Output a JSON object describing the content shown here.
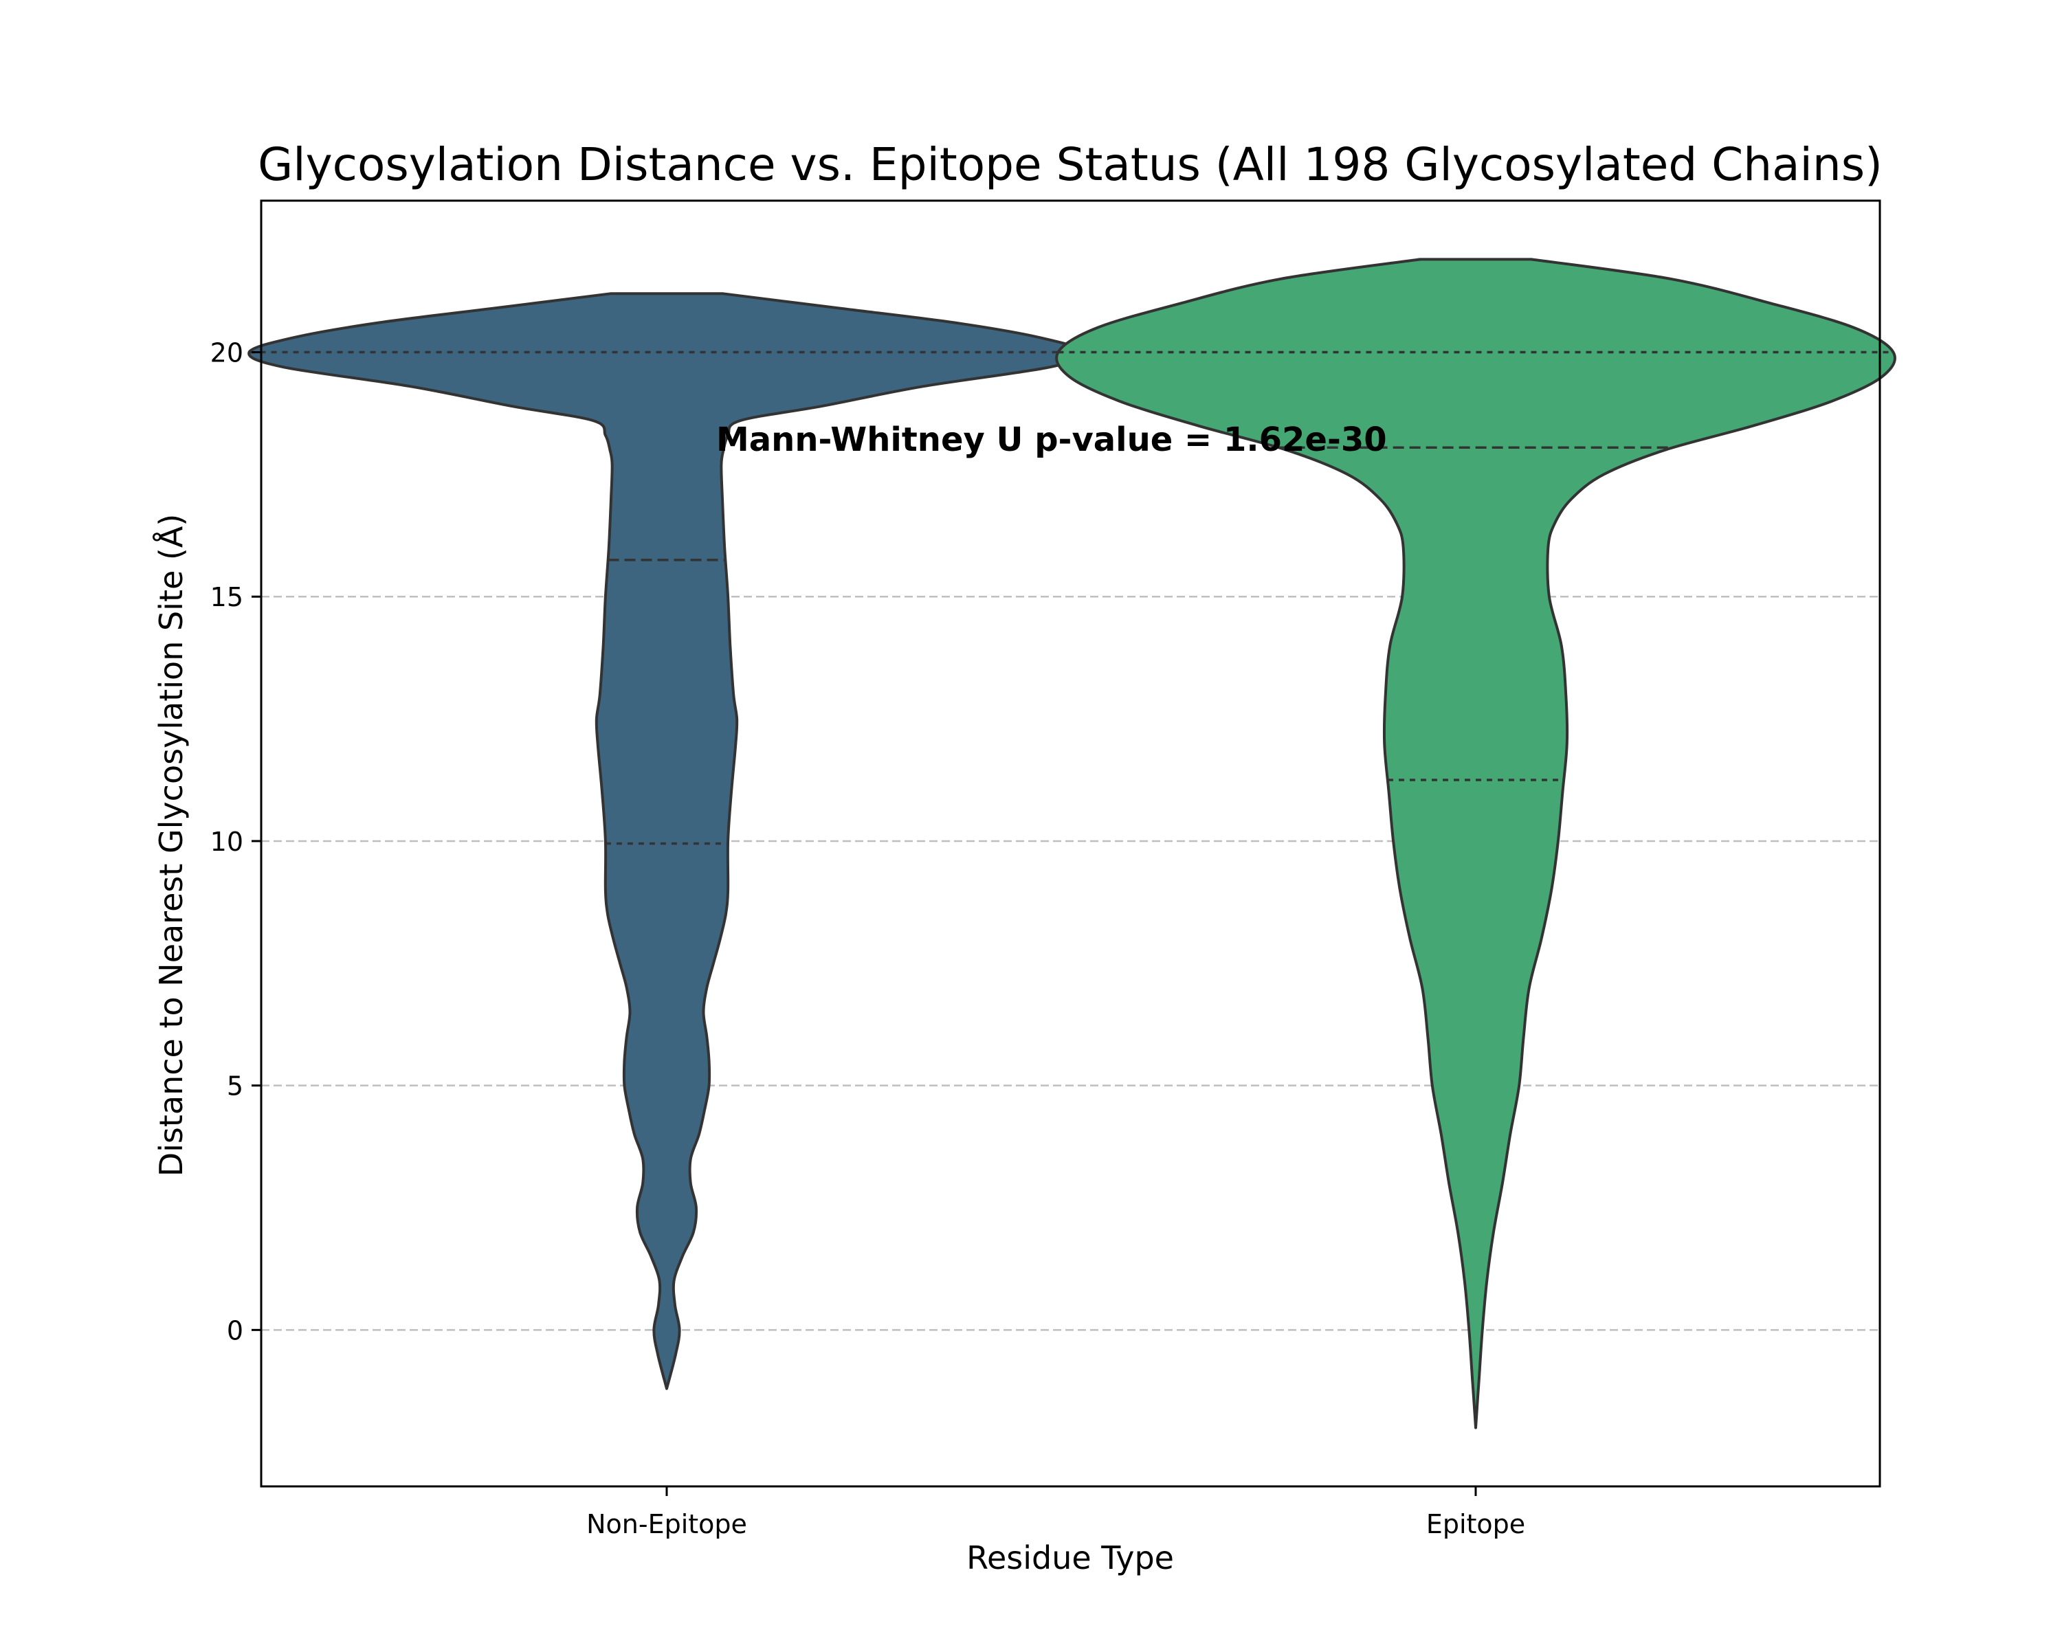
{
  "chart_data": {
    "type": "violin",
    "title": "Glycosylation Distance vs. Epitope Status (All 198 Glycosylated Chains)",
    "xlabel": "Residue Type",
    "ylabel": "Distance to Nearest Glycosylation Site (Å)",
    "categories": [
      "Non-Epitope",
      "Epitope"
    ],
    "ylim": [
      -3.2,
      23.1
    ],
    "yticks": [
      0,
      5,
      10,
      15,
      20
    ],
    "ytick_labels": [
      "0",
      "5",
      "10",
      "15",
      "20"
    ],
    "grid": {
      "y": true,
      "x": false,
      "style": "dashed"
    },
    "annotation": "Mann-Whitney U p-value = 1.62e-30",
    "colors": {
      "Non-Epitope": "#3e6580",
      "Epitope": "#45a874",
      "outline": "#333333",
      "grid": "#bfbfbf"
    },
    "series": [
      {
        "category": "Non-Epitope",
        "quartiles": {
          "q1": 9.95,
          "median": 15.75,
          "q3": 20.0
        },
        "range": [
          -1.2,
          21.2
        ],
        "density_profile": [
          [
            -1.2,
            0.0
          ],
          [
            -0.5,
            0.16
          ],
          [
            0.0,
            0.23
          ],
          [
            0.5,
            0.15
          ],
          [
            1.0,
            0.13
          ],
          [
            1.5,
            0.28
          ],
          [
            2.0,
            0.48
          ],
          [
            2.5,
            0.53
          ],
          [
            3.0,
            0.43
          ],
          [
            3.5,
            0.43
          ],
          [
            4.0,
            0.58
          ],
          [
            4.5,
            0.68
          ],
          [
            5.0,
            0.76
          ],
          [
            5.5,
            0.76
          ],
          [
            6.0,
            0.72
          ],
          [
            6.5,
            0.66
          ],
          [
            7.0,
            0.72
          ],
          [
            7.5,
            0.84
          ],
          [
            8.0,
            0.96
          ],
          [
            8.5,
            1.06
          ],
          [
            9.0,
            1.1
          ],
          [
            10.0,
            1.1
          ],
          [
            11.0,
            1.16
          ],
          [
            12.0,
            1.24
          ],
          [
            12.5,
            1.26
          ],
          [
            13.0,
            1.2
          ],
          [
            14.0,
            1.14
          ],
          [
            15.0,
            1.1
          ],
          [
            16.0,
            1.04
          ],
          [
            17.0,
            1.0
          ],
          [
            17.7,
            0.98
          ],
          [
            18.0,
            1.02
          ],
          [
            18.3,
            1.1
          ],
          [
            18.6,
            1.32
          ],
          [
            18.9,
            2.8
          ],
          [
            19.3,
            4.6
          ],
          [
            19.7,
            6.9
          ],
          [
            20.0,
            7.5
          ],
          [
            20.3,
            6.7
          ],
          [
            20.6,
            5.2
          ],
          [
            20.9,
            3.1
          ],
          [
            21.2,
            1.0
          ]
        ]
      },
      {
        "category": "Epitope",
        "quartiles": {
          "q1": 11.25,
          "median": 18.05,
          "q3": 20.0
        },
        "range": [
          -2.0,
          21.9
        ],
        "density_profile": [
          [
            -2.0,
            0.0
          ],
          [
            -1.5,
            0.03
          ],
          [
            -1.0,
            0.06
          ],
          [
            0.0,
            0.12
          ],
          [
            1.0,
            0.2
          ],
          [
            2.0,
            0.32
          ],
          [
            3.0,
            0.48
          ],
          [
            4.0,
            0.62
          ],
          [
            5.0,
            0.78
          ],
          [
            6.0,
            0.86
          ],
          [
            7.0,
            0.96
          ],
          [
            8.0,
            1.18
          ],
          [
            9.0,
            1.36
          ],
          [
            10.0,
            1.48
          ],
          [
            11.0,
            1.56
          ],
          [
            12.0,
            1.64
          ],
          [
            13.0,
            1.62
          ],
          [
            14.0,
            1.54
          ],
          [
            15.0,
            1.32
          ],
          [
            16.0,
            1.3
          ],
          [
            16.5,
            1.42
          ],
          [
            17.0,
            1.72
          ],
          [
            17.5,
            2.3
          ],
          [
            18.0,
            3.4
          ],
          [
            18.5,
            5.0
          ],
          [
            19.0,
            6.4
          ],
          [
            19.5,
            7.3
          ],
          [
            20.0,
            7.5
          ],
          [
            20.5,
            6.8
          ],
          [
            21.0,
            5.3
          ],
          [
            21.5,
            3.5
          ],
          [
            21.9,
            1.0
          ]
        ]
      }
    ]
  }
}
